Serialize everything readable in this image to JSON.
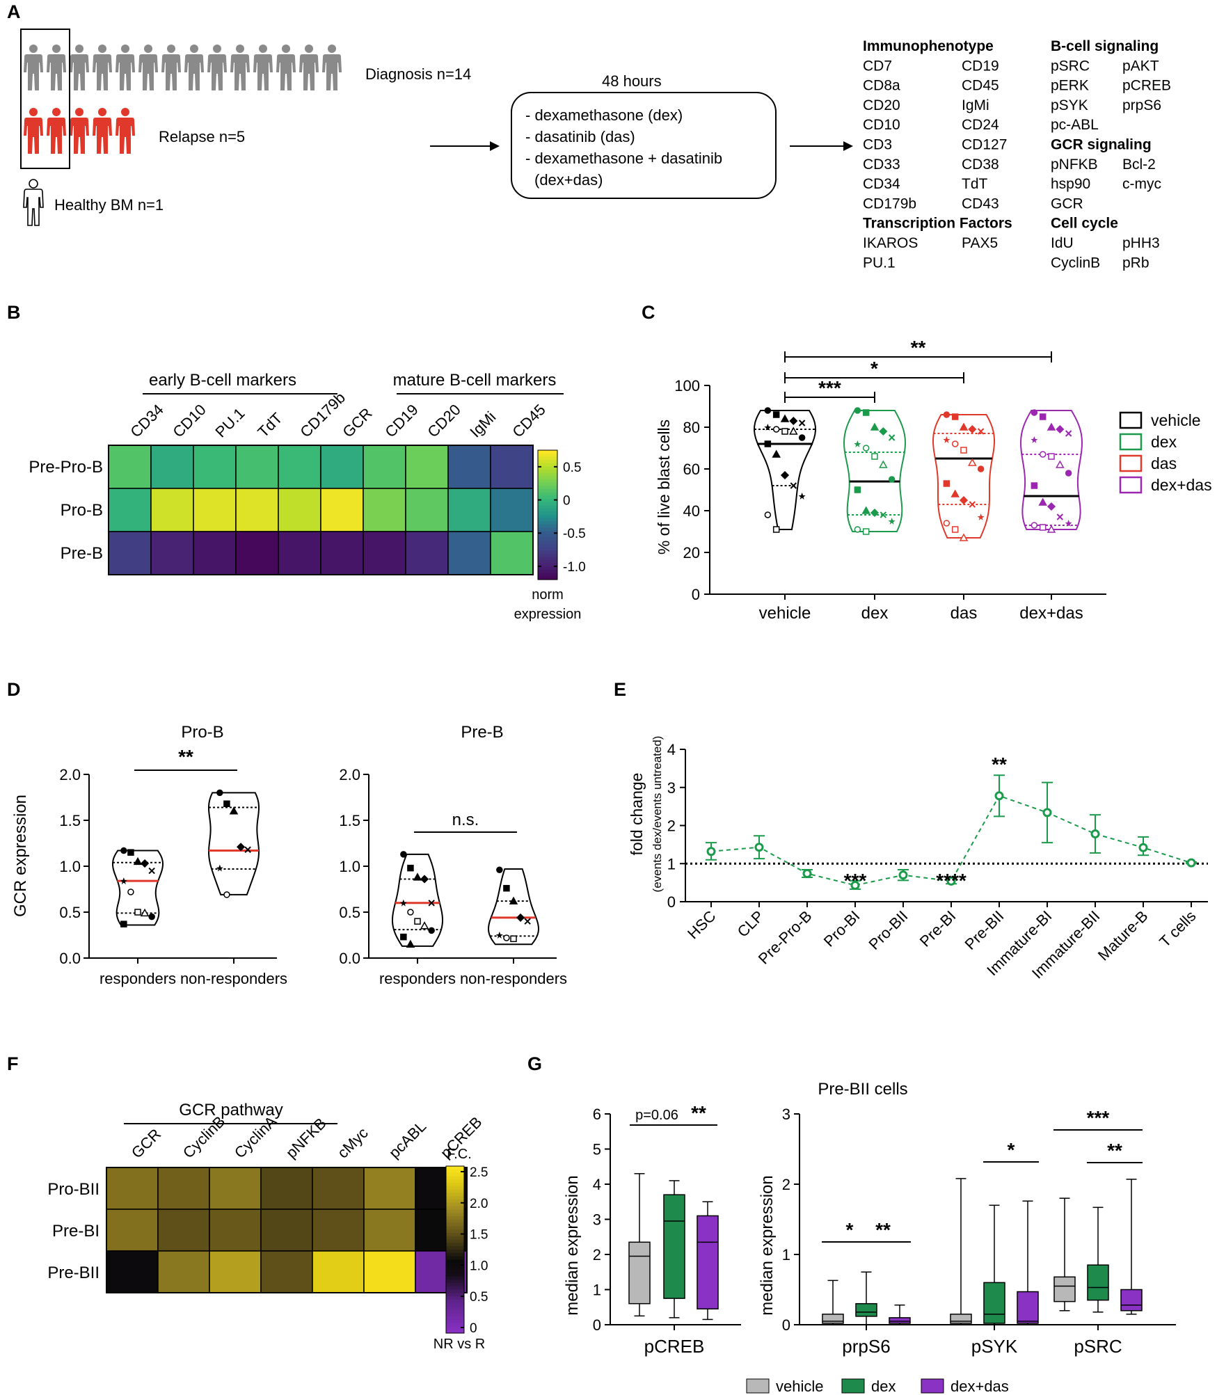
{
  "panel_letters": [
    "A",
    "B",
    "C",
    "D",
    "E",
    "F",
    "G"
  ],
  "panel_a": {
    "diagnosis_label": "Diagnosis n=14",
    "relapse_label": "Relapse n=5",
    "healthy_label": "Healthy BM n=1",
    "diagnosis_n": 14,
    "relapse_n": 5,
    "duration": "48 hours",
    "treatments": [
      "- dexamethasone (dex)",
      "- dasatinib (das)",
      "- dexamethasone + dasatinib",
      "(dex+das)"
    ],
    "colors": {
      "diagnosis": "#8a8a8a",
      "relapse": "#e0382b",
      "healthy": "#ffffff"
    },
    "marker_sections": [
      {
        "heading": "Immunophenotype",
        "col": 0,
        "row": 0
      },
      {
        "heading": "B-cell signaling",
        "col": 2,
        "row": 0
      },
      {
        "heading": "GCR signaling",
        "col": 2,
        "row": 5
      },
      {
        "heading": "Transcription Factors",
        "col": 0,
        "row": 9
      },
      {
        "heading": "Cell cycle",
        "col": 2,
        "row": 9
      }
    ],
    "marker_items": [
      {
        "text": "CD7",
        "col": 0,
        "row": 1
      },
      {
        "text": "CD19",
        "col": 1,
        "row": 1
      },
      {
        "text": "CD8a",
        "col": 0,
        "row": 2
      },
      {
        "text": "CD45",
        "col": 1,
        "row": 2
      },
      {
        "text": "CD20",
        "col": 0,
        "row": 3
      },
      {
        "text": "IgMi",
        "col": 1,
        "row": 3
      },
      {
        "text": "CD10",
        "col": 0,
        "row": 4
      },
      {
        "text": "CD24",
        "col": 1,
        "row": 4
      },
      {
        "text": "CD3",
        "col": 0,
        "row": 5
      },
      {
        "text": "CD127",
        "col": 1,
        "row": 5
      },
      {
        "text": "CD33",
        "col": 0,
        "row": 6
      },
      {
        "text": "CD38",
        "col": 1,
        "row": 6
      },
      {
        "text": "CD34",
        "col": 0,
        "row": 7
      },
      {
        "text": "TdT",
        "col": 1,
        "row": 7
      },
      {
        "text": "CD179b",
        "col": 0,
        "row": 8
      },
      {
        "text": "CD43",
        "col": 1,
        "row": 8
      },
      {
        "text": "IKAROS",
        "col": 0,
        "row": 10
      },
      {
        "text": "PAX5",
        "col": 1,
        "row": 10
      },
      {
        "text": "PU.1",
        "col": 0,
        "row": 11
      },
      {
        "text": "pSRC",
        "col": 2,
        "row": 1
      },
      {
        "text": "pAKT",
        "col": 3,
        "row": 1
      },
      {
        "text": "pERK",
        "col": 2,
        "row": 2
      },
      {
        "text": "pCREB",
        "col": 3,
        "row": 2
      },
      {
        "text": "pSYK",
        "col": 2,
        "row": 3
      },
      {
        "text": "prpS6",
        "col": 3,
        "row": 3
      },
      {
        "text": "pc-ABL",
        "col": 2,
        "row": 4
      },
      {
        "text": "pNFKB",
        "col": 2,
        "row": 6
      },
      {
        "text": "Bcl-2",
        "col": 3,
        "row": 6
      },
      {
        "text": "hsp90",
        "col": 2,
        "row": 7
      },
      {
        "text": "c-myc",
        "col": 3,
        "row": 7
      },
      {
        "text": "GCR",
        "col": 2,
        "row": 8
      },
      {
        "text": "IdU",
        "col": 2,
        "row": 10
      },
      {
        "text": "pHH3",
        "col": 3,
        "row": 10
      },
      {
        "text": "CyclinB",
        "col": 2,
        "row": 11
      },
      {
        "text": "pRb",
        "col": 3,
        "row": 11
      }
    ]
  },
  "panel_b": {
    "group_labels": [
      "early B-cell markers",
      "mature B-cell markers"
    ],
    "colorbar_label_1": "norm",
    "colorbar_label_2": "expression",
    "chart_data": {
      "type": "heatmap",
      "columns": [
        "CD34",
        "CD10",
        "PU.1",
        "TdT",
        "CD179b",
        "GCR",
        "CD19",
        "CD20",
        "IgMi",
        "CD45"
      ],
      "rows": [
        "Pre-Pro-B",
        "Pro-B",
        "Pre-B"
      ],
      "values": [
        [
          0.15,
          -0.05,
          0.05,
          0.1,
          0.05,
          -0.05,
          0.15,
          0.25,
          -0.5,
          -0.7
        ],
        [
          0.0,
          0.6,
          0.65,
          0.65,
          0.55,
          0.7,
          0.3,
          0.2,
          -0.05,
          -0.35
        ],
        [
          -0.75,
          -0.95,
          -1.05,
          -1.15,
          -1.05,
          -1.05,
          -1.05,
          -0.9,
          -0.45,
          0.15
        ]
      ],
      "colorbar_ticks": [
        0.5,
        0,
        -0.5,
        -1.0
      ],
      "colorbar_tick_labels": [
        "0.5",
        "0",
        "-0.5",
        "-1.0"
      ],
      "vmin": -1.2,
      "vmax": 0.75,
      "title": "",
      "xlabel": "",
      "ylabel": ""
    }
  },
  "panel_c": {
    "chart_data": {
      "type": "violin",
      "categories": [
        "vehicle",
        "dex",
        "das",
        "dex+das"
      ],
      "colors": [
        "#000000",
        "#1a9a4a",
        "#e0382b",
        "#9b27b0"
      ],
      "medians": [
        72,
        54,
        65,
        47
      ],
      "q1": [
        52,
        38,
        43,
        33
      ],
      "q3": [
        79,
        68,
        77,
        67
      ],
      "min": [
        31,
        30,
        27,
        31
      ],
      "max": [
        88,
        88,
        86,
        88
      ],
      "points": [
        [
          88,
          86,
          84,
          83,
          82,
          80,
          79,
          78,
          78,
          75,
          72,
          67,
          57,
          52,
          47,
          38,
          31
        ],
        [
          88,
          87,
          80,
          78,
          75,
          72,
          70,
          66,
          62,
          55,
          50,
          40,
          39,
          38,
          35,
          31,
          30
        ],
        [
          86,
          85,
          80,
          79,
          78,
          74,
          72,
          69,
          63,
          60,
          53,
          48,
          45,
          43,
          37,
          34,
          31,
          27
        ],
        [
          87,
          85,
          80,
          79,
          77,
          74,
          67,
          66,
          62,
          58,
          52,
          44,
          42,
          37,
          34,
          33,
          32,
          31
        ]
      ],
      "ylabel": "% of live blast cells",
      "ylim": [
        0,
        100
      ],
      "yticks": [
        0,
        20,
        40,
        60,
        80,
        100
      ],
      "legend": [
        "vehicle",
        "dex",
        "das",
        "dex+das"
      ],
      "significance": [
        {
          "from": "vehicle",
          "to": "dex",
          "label": "***"
        },
        {
          "from": "vehicle",
          "to": "das",
          "label": "*"
        },
        {
          "from": "vehicle",
          "to": "dex+das",
          "label": "**"
        }
      ]
    }
  },
  "panel_d": {
    "chart_data": [
      {
        "type": "violin",
        "title": "Pro-B",
        "categories": [
          "responders",
          "non-responders"
        ],
        "medians": [
          0.84,
          1.17
        ],
        "q1": [
          0.49,
          0.97
        ],
        "q3": [
          1.04,
          1.64
        ],
        "min": [
          0.36,
          0.69
        ],
        "max": [
          1.17,
          1.8
        ],
        "points": [
          [
            1.17,
            1.15,
            1.05,
            1.03,
            0.95,
            0.84,
            0.72,
            0.5,
            0.49,
            0.45,
            0.37
          ],
          [
            1.8,
            1.68,
            1.6,
            1.21,
            1.18,
            0.98,
            0.69
          ]
        ],
        "ylabel": "GCR expression",
        "ylim": [
          0,
          2.0
        ],
        "yticks": [
          0,
          0.5,
          1.0,
          1.5,
          2.0
        ],
        "ytick_labels": [
          "0.0",
          "0.5",
          "1.0",
          "1.5",
          "2.0"
        ],
        "significance": "**"
      },
      {
        "type": "violin",
        "title": "Pre-B",
        "categories": [
          "responders",
          "non-responders"
        ],
        "medians": [
          0.6,
          0.44
        ],
        "q1": [
          0.31,
          0.24
        ],
        "q3": [
          0.86,
          0.62
        ],
        "min": [
          0.13,
          0.15
        ],
        "max": [
          1.13,
          0.97
        ],
        "points": [
          [
            1.13,
            0.98,
            0.88,
            0.86,
            0.6,
            0.6,
            0.5,
            0.4,
            0.35,
            0.3,
            0.23,
            0.15
          ],
          [
            0.96,
            0.76,
            0.62,
            0.44,
            0.4,
            0.25,
            0.22,
            0.21
          ]
        ],
        "ylim": [
          0,
          2.0
        ],
        "yticks": [
          0,
          0.5,
          1.0,
          1.5,
          2.0
        ],
        "ytick_labels": [
          "0.0",
          "0.5",
          "1.0",
          "1.5",
          "2.0"
        ],
        "significance": "n.s."
      }
    ]
  },
  "panel_e": {
    "chart_data": {
      "type": "line",
      "categories": [
        "HSC",
        "CLP",
        "Pre-Pro-B",
        "Pro-BI",
        "Pro-BII",
        "Pre-BI",
        "Pre-BII",
        "Immature-BI",
        "Immature-BII",
        "Mature-B",
        "T cells"
      ],
      "values": [
        1.32,
        1.43,
        0.74,
        0.43,
        0.7,
        0.54,
        2.78,
        2.34,
        1.78,
        1.42,
        1.02
      ],
      "err_low": [
        1.1,
        1.13,
        0.64,
        0.33,
        0.56,
        0.47,
        2.24,
        1.55,
        1.28,
        1.22,
        1.0
      ],
      "err_high": [
        1.55,
        1.73,
        0.84,
        0.55,
        0.84,
        0.61,
        3.32,
        3.13,
        2.28,
        1.7,
        1.04
      ],
      "ylabel_1": "fold change",
      "ylabel_2": "(events dex/events untreated)",
      "ylim": [
        0,
        4
      ],
      "yticks": [
        0,
        1,
        2,
        3,
        4
      ],
      "reference_line": 1,
      "annotations": [
        {
          "category": "Pro-BI",
          "label": "***"
        },
        {
          "category": "Pre-BI",
          "label": "****"
        },
        {
          "category": "Pre-BII",
          "label": "**"
        }
      ],
      "color": "#1a9a4a"
    }
  },
  "panel_f": {
    "group_label": "GCR pathway",
    "colorbar_title": "F.C.",
    "colorbar_caption": "NR vs R",
    "chart_data": {
      "type": "heatmap",
      "columns": [
        "GCR",
        "CyclinB",
        "CyclinA",
        "pNFKB",
        "cMyc",
        "pcABL",
        "pCREB"
      ],
      "rows": [
        "Pro-BII",
        "Pre-BI",
        "Pre-BII"
      ],
      "values": [
        [
          1.7,
          1.6,
          1.75,
          1.45,
          1.5,
          1.8,
          1.05
        ],
        [
          1.7,
          1.5,
          1.55,
          1.45,
          1.5,
          1.75,
          1.1
        ],
        [
          1.05,
          1.75,
          2.0,
          1.5,
          2.3,
          2.45,
          0.3
        ]
      ],
      "colorbar_ticks": [
        2.5,
        2.0,
        1.5,
        1.0,
        0.5,
        0
      ],
      "colorbar_tick_labels": [
        "2.5",
        "2.0",
        "1.5",
        "1.0",
        "0.5",
        "0"
      ],
      "vmin": 0,
      "vmax": 2.5
    }
  },
  "panel_g": {
    "title": "Pre-BII cells",
    "legend": [
      "vehicle",
      "dex",
      "dex+das"
    ],
    "colors": [
      "#b8b8b8",
      "#1e8a4c",
      "#8a32c4"
    ],
    "chart_data": [
      {
        "type": "box",
        "categories": [
          "pCREB"
        ],
        "ylabel": "median expression",
        "ylim": [
          0,
          6
        ],
        "yticks": [
          0,
          1,
          2,
          3,
          4,
          5,
          6
        ],
        "series": [
          {
            "name": "vehicle",
            "min": 0.25,
            "q1": 0.6,
            "median": 1.95,
            "q3": 2.35,
            "max": 4.3
          },
          {
            "name": "dex",
            "min": 0.2,
            "q1": 0.75,
            "median": 2.95,
            "q3": 3.7,
            "max": 4.1
          },
          {
            "name": "dex+das",
            "min": 0.15,
            "q1": 0.45,
            "median": 2.35,
            "q3": 3.1,
            "max": 3.5
          }
        ],
        "significance": [
          {
            "from": "vehicle",
            "to": "dex",
            "label": "p=0.06"
          },
          {
            "from": "dex",
            "to": "dex+das",
            "label": "**"
          }
        ]
      },
      {
        "type": "box",
        "categories": [
          "prpS6",
          "pSYK",
          "pSRC"
        ],
        "ylabel": "median expression",
        "ylim": [
          0,
          3
        ],
        "yticks": [
          0,
          1,
          2,
          3
        ],
        "groups": [
          [
            {
              "name": "vehicle",
              "min": 0,
              "q1": 0.02,
              "median": 0.05,
              "q3": 0.15,
              "max": 0.63
            },
            {
              "name": "dex",
              "min": 0,
              "q1": 0.12,
              "median": 0.18,
              "q3": 0.3,
              "max": 0.75
            },
            {
              "name": "dex+das",
              "min": 0,
              "q1": 0.02,
              "median": 0.05,
              "q3": 0.1,
              "max": 0.28
            }
          ],
          [
            {
              "name": "vehicle",
              "min": 0,
              "q1": 0.02,
              "median": 0.05,
              "q3": 0.15,
              "max": 2.08
            },
            {
              "name": "dex",
              "min": 0,
              "q1": 0.02,
              "median": 0.15,
              "q3": 0.6,
              "max": 1.7
            },
            {
              "name": "dex+das",
              "min": 0,
              "q1": 0.02,
              "median": 0.05,
              "q3": 0.47,
              "max": 1.76
            }
          ],
          [
            {
              "name": "vehicle",
              "min": 0.2,
              "q1": 0.33,
              "median": 0.55,
              "q3": 0.68,
              "max": 1.8
            },
            {
              "name": "dex",
              "min": 0.18,
              "q1": 0.35,
              "median": 0.53,
              "q3": 0.85,
              "max": 1.67
            },
            {
              "name": "dex+das",
              "min": 0.15,
              "q1": 0.2,
              "median": 0.28,
              "q3": 0.5,
              "max": 2.07
            }
          ]
        ],
        "significance": [
          {
            "category": "prpS6",
            "from": "vehicle",
            "to": "dex",
            "label": "*"
          },
          {
            "category": "prpS6",
            "from": "dex",
            "to": "dex+das",
            "label": "**"
          },
          {
            "category": "pSYK",
            "from": "dex",
            "to": "dex+das",
            "label": "*"
          },
          {
            "category": "pSRC",
            "from": "vehicle",
            "to": "dex+das",
            "label": "***"
          },
          {
            "category": "pSRC",
            "from": "dex",
            "to": "dex+das",
            "label": "**"
          }
        ]
      }
    ]
  }
}
